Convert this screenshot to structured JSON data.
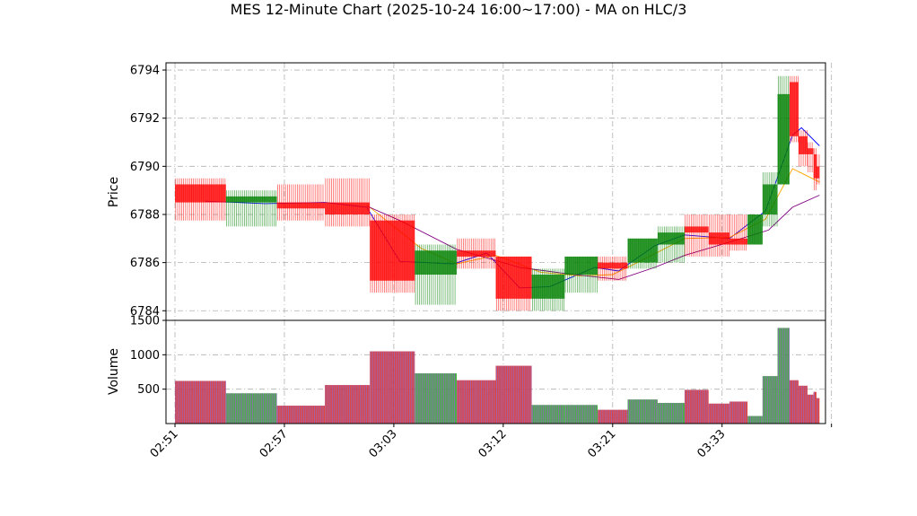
{
  "chart_data": {
    "type": "candlestick",
    "title": "MES 12-Minute Chart (2025-10-24 16:00~17:00) - MA on HLC/3",
    "price_panel": {
      "ylabel": "Price",
      "ylim": [
        6783.6,
        6794.3
      ],
      "yticks": [
        6784,
        6786,
        6788,
        6790,
        6792,
        6794
      ]
    },
    "volume_panel": {
      "ylabel": "Volume",
      "ylim": [
        0,
        1500
      ],
      "yticks": [
        500,
        1000,
        1500
      ]
    },
    "xlim": [
      -3,
      217
    ],
    "x_ticks": [
      {
        "label": "02:51",
        "x": 0
      },
      {
        "label": "02:57",
        "x": 36.5
      },
      {
        "label": "03:03",
        "x": 73
      },
      {
        "label": "03:12",
        "x": 109.5
      },
      {
        "label": "03:21",
        "x": 146
      },
      {
        "label": "03:33",
        "x": 182.5
      },
      {
        "label": "",
        "x": 219
      }
    ],
    "candles": [
      {
        "x0": 0,
        "x1": 17,
        "open": 6789.25,
        "high": 6789.5,
        "low": 6787.75,
        "close": 6788.5,
        "volume": 620
      },
      {
        "x0": 17,
        "x1": 34,
        "open": 6788.5,
        "high": 6789.0,
        "low": 6787.5,
        "close": 6788.75,
        "volume": 440
      },
      {
        "x0": 34,
        "x1": 50,
        "open": 6788.5,
        "high": 6789.25,
        "low": 6787.75,
        "close": 6788.25,
        "volume": 260
      },
      {
        "x0": 50,
        "x1": 65,
        "open": 6788.5,
        "high": 6789.5,
        "low": 6787.5,
        "close": 6788.0,
        "volume": 560
      },
      {
        "x0": 65,
        "x1": 80,
        "open": 6787.75,
        "high": 6788.0,
        "low": 6784.75,
        "close": 6785.25,
        "volume": 1050
      },
      {
        "x0": 80,
        "x1": 94,
        "open": 6785.5,
        "high": 6786.75,
        "low": 6784.25,
        "close": 6786.5,
        "volume": 730
      },
      {
        "x0": 94,
        "x1": 107,
        "open": 6786.5,
        "high": 6787.0,
        "low": 6785.75,
        "close": 6786.25,
        "volume": 630
      },
      {
        "x0": 107,
        "x1": 119,
        "open": 6786.25,
        "high": 6786.25,
        "low": 6784.0,
        "close": 6784.5,
        "volume": 840
      },
      {
        "x0": 119,
        "x1": 130,
        "open": 6784.5,
        "high": 6785.75,
        "low": 6784.0,
        "close": 6785.5,
        "volume": 270
      },
      {
        "x0": 130,
        "x1": 141,
        "open": 6785.5,
        "high": 6786.25,
        "low": 6784.75,
        "close": 6786.25,
        "volume": 270
      },
      {
        "x0": 141,
        "x1": 151,
        "open": 6786.0,
        "high": 6786.25,
        "low": 6785.25,
        "close": 6785.75,
        "volume": 200
      },
      {
        "x0": 151,
        "x1": 161,
        "open": 6786.0,
        "high": 6787.0,
        "low": 6785.75,
        "close": 6787.0,
        "volume": 350
      },
      {
        "x0": 161,
        "x1": 170,
        "open": 6786.75,
        "high": 6787.5,
        "low": 6786.0,
        "close": 6787.25,
        "volume": 300
      },
      {
        "x0": 170,
        "x1": 178,
        "open": 6787.5,
        "high": 6788.0,
        "low": 6786.25,
        "close": 6787.25,
        "volume": 490
      },
      {
        "x0": 178,
        "x1": 185,
        "open": 6787.25,
        "high": 6788.0,
        "low": 6786.25,
        "close": 6786.75,
        "volume": 290
      },
      {
        "x0": 185,
        "x1": 191,
        "open": 6787.0,
        "high": 6788.0,
        "low": 6786.5,
        "close": 6786.75,
        "volume": 320
      },
      {
        "x0": 191,
        "x1": 196,
        "open": 6786.75,
        "high": 6788.0,
        "low": 6786.75,
        "close": 6788.0,
        "volume": 110
      },
      {
        "x0": 196,
        "x1": 201,
        "open": 6788.0,
        "high": 6789.75,
        "low": 6787.5,
        "close": 6789.25,
        "volume": 690
      },
      {
        "x0": 201,
        "x1": 205,
        "open": 6789.25,
        "high": 6793.75,
        "low": 6789.25,
        "close": 6793.0,
        "volume": 1390
      },
      {
        "x0": 205,
        "x1": 208,
        "open": 6793.5,
        "high": 6793.75,
        "low": 6791.0,
        "close": 6791.25,
        "volume": 630
      },
      {
        "x0": 208,
        "x1": 211,
        "open": 6791.25,
        "high": 6791.5,
        "low": 6790.0,
        "close": 6790.5,
        "volume": 550
      },
      {
        "x0": 211,
        "x1": 213,
        "open": 6790.75,
        "high": 6791.0,
        "low": 6789.75,
        "close": 6790.5,
        "volume": 420
      },
      {
        "x0": 213,
        "x1": 214,
        "open": 6790.5,
        "high": 6790.75,
        "low": 6789.0,
        "close": 6789.5,
        "volume": 460
      },
      {
        "x0": 214,
        "x1": 215,
        "open": 6790.0,
        "high": 6790.5,
        "low": 6789.25,
        "close": 6789.5,
        "volume": 370
      }
    ],
    "moving_averages": [
      {
        "color": "#0000ff",
        "points": [
          [
            10,
            6788.55
          ],
          [
            30,
            6788.45
          ],
          [
            50,
            6788.5
          ],
          [
            64,
            6788.3
          ],
          [
            75,
            6786.05
          ],
          [
            93,
            6785.95
          ],
          [
            104,
            6786.4
          ],
          [
            115,
            6784.95
          ],
          [
            125,
            6785.0
          ],
          [
            140,
            6785.8
          ],
          [
            148,
            6785.65
          ],
          [
            160,
            6786.7
          ],
          [
            170,
            6787.15
          ],
          [
            185,
            6787.0
          ],
          [
            197,
            6788.15
          ],
          [
            206,
            6791.3
          ],
          [
            209,
            6791.6
          ],
          [
            215,
            6790.85
          ]
        ]
      },
      {
        "color": "#ffa500",
        "points": [
          [
            64,
            6788.4
          ],
          [
            72,
            6787.6
          ],
          [
            82,
            6786.6
          ],
          [
            94,
            6785.95
          ],
          [
            107,
            6786.3
          ],
          [
            122,
            6785.6
          ],
          [
            135,
            6785.45
          ],
          [
            146,
            6785.5
          ],
          [
            155,
            6786.05
          ],
          [
            170,
            6787.0
          ],
          [
            185,
            6787.05
          ],
          [
            197,
            6787.8
          ],
          [
            206,
            6789.9
          ],
          [
            215,
            6789.35
          ]
        ]
      },
      {
        "color": "#800080",
        "points": [
          [
            64,
            6788.35
          ],
          [
            75,
            6787.75
          ],
          [
            94,
            6786.55
          ],
          [
            104,
            6786.2
          ],
          [
            115,
            6785.8
          ],
          [
            130,
            6785.55
          ],
          [
            148,
            6785.3
          ],
          [
            160,
            6785.8
          ],
          [
            170,
            6786.3
          ],
          [
            185,
            6786.85
          ],
          [
            198,
            6787.35
          ],
          [
            206,
            6788.3
          ],
          [
            215,
            6788.8
          ]
        ]
      }
    ],
    "colors": {
      "up": "#008000",
      "down": "#ff0000",
      "volume_edge": "#9467bd",
      "volume_up": "#2ca02c",
      "volume_down": "#d62728"
    },
    "grid": true
  }
}
